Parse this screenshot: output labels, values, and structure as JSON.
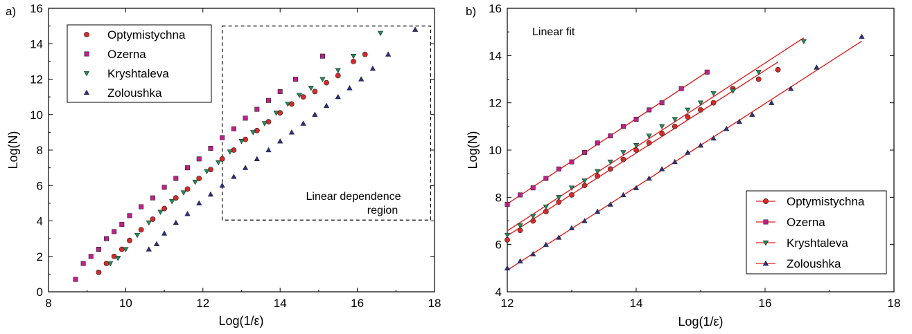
{
  "chart_data": [
    {
      "panel_label": "a)",
      "type": "scatter",
      "xlabel": "Log(1/ε)",
      "ylabel": "Log(N)",
      "xlim": [
        8,
        18
      ],
      "ylim": [
        0,
        16
      ],
      "xticks": [
        8,
        10,
        12,
        14,
        16,
        18
      ],
      "yticks": [
        0,
        2,
        4,
        6,
        8,
        10,
        12,
        14,
        16
      ],
      "xtick_labels": [
        "8",
        "10",
        "12",
        "14",
        "16",
        "18"
      ],
      "ytick_labels": [
        "0",
        "2",
        "4",
        "6",
        "8",
        "10",
        "12",
        "14",
        "16"
      ],
      "legend_position": "top-left",
      "annotation": {
        "lines": [
          "Linear dependence",
          "region"
        ],
        "box_x": [
          12.5,
          17.9
        ],
        "box_y": [
          4.05,
          15.0
        ]
      },
      "series": [
        {
          "name": "Optymistychna",
          "marker": "circle",
          "color": "#d62a2a",
          "x": [
            9.3,
            9.5,
            9.7,
            9.9,
            10.1,
            10.4,
            10.7,
            11.0,
            11.3,
            11.6,
            11.9,
            12.2,
            12.5,
            12.8,
            13.1,
            13.4,
            13.7,
            14.0,
            14.3,
            14.6,
            14.9,
            15.2,
            15.5,
            15.9,
            16.2
          ],
          "y": [
            1.1,
            1.6,
            2.0,
            2.4,
            2.9,
            3.5,
            4.1,
            4.7,
            5.3,
            5.8,
            6.4,
            6.9,
            7.5,
            8.0,
            8.6,
            9.1,
            9.6,
            10.1,
            10.6,
            11.0,
            11.3,
            11.8,
            12.2,
            13.0,
            13.4
          ]
        },
        {
          "name": "Ozerna",
          "marker": "square",
          "color": "#c0208a",
          "x": [
            8.7,
            8.9,
            9.1,
            9.3,
            9.5,
            9.7,
            9.9,
            10.1,
            10.4,
            10.7,
            11.0,
            11.3,
            11.6,
            11.9,
            12.2,
            12.5,
            12.8,
            13.1,
            13.4,
            13.7,
            14.0,
            14.4,
            15.1
          ],
          "y": [
            0.7,
            1.6,
            2.0,
            2.4,
            3.0,
            3.4,
            3.8,
            4.3,
            4.8,
            5.3,
            5.9,
            6.4,
            7.0,
            7.5,
            8.1,
            8.7,
            9.2,
            9.8,
            10.3,
            10.8,
            11.3,
            12.0,
            13.3
          ]
        },
        {
          "name": "Kryshtaleva",
          "marker": "triangle-down",
          "color": "#1f8f5a",
          "x": [
            9.6,
            9.8,
            10.0,
            10.3,
            10.6,
            10.9,
            11.2,
            11.5,
            11.8,
            12.1,
            12.4,
            12.7,
            13.0,
            13.3,
            13.6,
            13.9,
            14.2,
            14.5,
            14.8,
            15.1,
            15.5,
            15.9,
            16.6
          ],
          "y": [
            1.6,
            1.9,
            2.4,
            3.2,
            3.9,
            4.5,
            5.1,
            5.6,
            6.2,
            6.8,
            7.3,
            7.9,
            8.5,
            9.0,
            9.5,
            10.1,
            10.6,
            11.1,
            11.5,
            12.0,
            12.5,
            13.3,
            14.6
          ]
        },
        {
          "name": "Zoloushka",
          "marker": "triangle-up",
          "color": "#2b2f86",
          "x": [
            10.6,
            10.8,
            11.0,
            11.3,
            11.6,
            11.9,
            12.2,
            12.5,
            12.8,
            13.1,
            13.4,
            13.7,
            14.0,
            14.3,
            14.6,
            14.9,
            15.2,
            15.5,
            15.8,
            16.1,
            16.4,
            16.8,
            17.5
          ],
          "y": [
            2.4,
            2.7,
            3.3,
            3.9,
            4.4,
            5.0,
            5.5,
            6.0,
            6.5,
            7.0,
            7.5,
            8.0,
            8.5,
            9.0,
            9.5,
            10.0,
            10.5,
            11.0,
            11.5,
            12.0,
            12.6,
            13.4,
            14.8
          ]
        }
      ]
    },
    {
      "panel_label": "b)",
      "type": "scatter",
      "xlabel": "Log(1/ε)",
      "ylabel": "Log(N)",
      "xlim": [
        12,
        18
      ],
      "ylim": [
        4,
        16
      ],
      "xticks": [
        12,
        14,
        16,
        18
      ],
      "yticks": [
        4,
        6,
        8,
        10,
        12,
        14,
        16
      ],
      "xtick_labels": [
        "12",
        "14",
        "16",
        "18"
      ],
      "ytick_labels": [
        "4",
        "6",
        "8",
        "10",
        "12",
        "14",
        "16"
      ],
      "legend_position": "bottom-right",
      "annotation_text": "Linear fit",
      "fit_color": "#e02020",
      "series": [
        {
          "name": "Optymistychna",
          "marker": "circle",
          "color": "#d62a2a",
          "x": [
            12.0,
            12.2,
            12.4,
            12.6,
            12.8,
            13.0,
            13.2,
            13.4,
            13.6,
            13.8,
            14.0,
            14.2,
            14.4,
            14.6,
            14.8,
            15.0,
            15.2,
            15.5,
            15.9,
            16.2
          ],
          "y": [
            6.2,
            6.6,
            7.0,
            7.4,
            7.8,
            8.1,
            8.5,
            8.9,
            9.2,
            9.6,
            10.0,
            10.3,
            10.7,
            11.0,
            11.4,
            11.7,
            12.0,
            12.6,
            13.0,
            13.4
          ]
        },
        {
          "name": "Ozerna",
          "marker": "square",
          "color": "#c0208a",
          "x": [
            12.0,
            12.2,
            12.4,
            12.6,
            12.8,
            13.0,
            13.2,
            13.4,
            13.6,
            13.8,
            14.0,
            14.2,
            14.4,
            14.7,
            15.1
          ],
          "y": [
            7.7,
            8.1,
            8.4,
            8.8,
            9.2,
            9.5,
            9.9,
            10.3,
            10.6,
            11.0,
            11.3,
            11.7,
            12.0,
            12.6,
            13.3
          ]
        },
        {
          "name": "Kryshtaleva",
          "marker": "triangle-down",
          "color": "#1f8f5a",
          "x": [
            12.0,
            12.2,
            12.4,
            12.6,
            12.8,
            13.0,
            13.2,
            13.4,
            13.6,
            13.8,
            14.0,
            14.2,
            14.4,
            14.6,
            14.8,
            15.0,
            15.2,
            15.5,
            15.9,
            16.6
          ],
          "y": [
            6.4,
            6.8,
            7.2,
            7.6,
            8.0,
            8.4,
            8.7,
            9.1,
            9.5,
            9.9,
            10.2,
            10.6,
            11.0,
            11.3,
            11.7,
            12.0,
            12.4,
            12.5,
            13.3,
            14.6
          ]
        },
        {
          "name": "Zoloushka",
          "marker": "triangle-up",
          "color": "#2b2f86",
          "x": [
            12.0,
            12.2,
            12.4,
            12.6,
            12.8,
            13.0,
            13.2,
            13.4,
            13.6,
            13.8,
            14.0,
            14.2,
            14.4,
            14.6,
            14.8,
            15.0,
            15.2,
            15.4,
            15.6,
            15.8,
            16.1,
            16.4,
            16.8,
            17.5
          ],
          "y": [
            5.0,
            5.3,
            5.6,
            6.0,
            6.3,
            6.7,
            7.0,
            7.4,
            7.7,
            8.1,
            8.4,
            8.8,
            9.2,
            9.5,
            9.9,
            10.2,
            10.5,
            10.9,
            11.2,
            11.5,
            12.0,
            12.6,
            13.5,
            14.8
          ]
        }
      ]
    }
  ]
}
